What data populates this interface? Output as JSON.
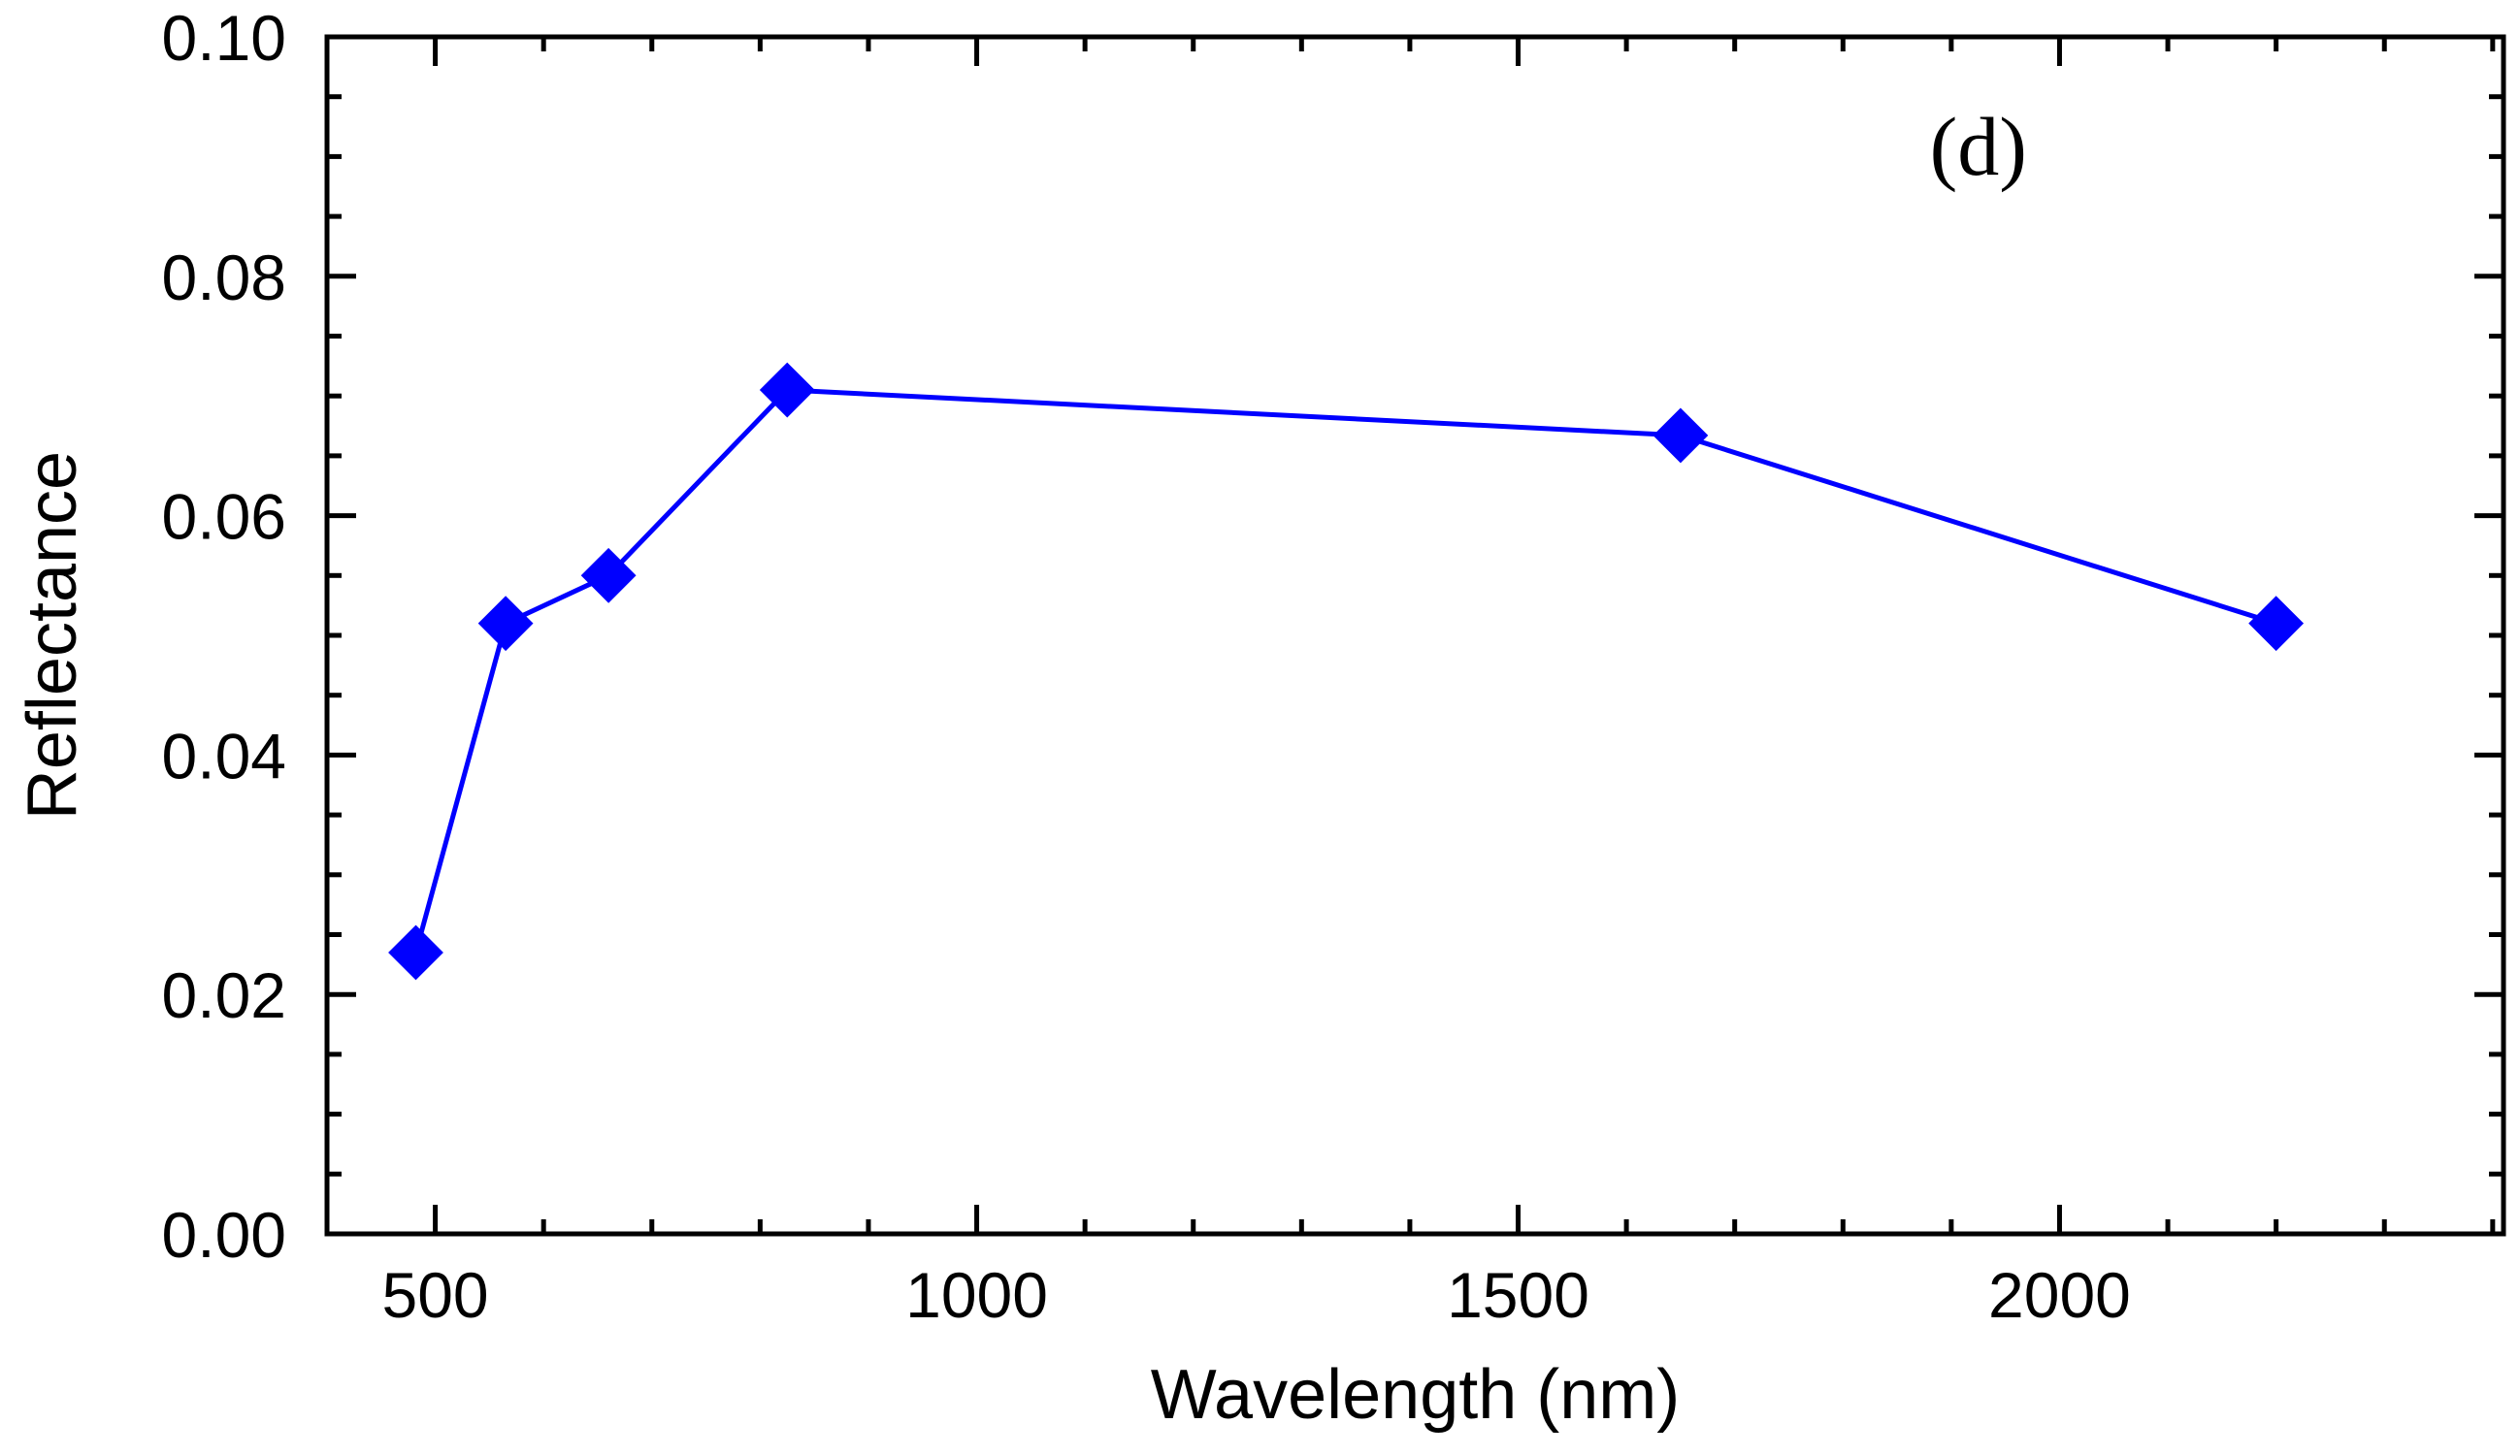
{
  "chart_data": {
    "type": "line",
    "title": "",
    "panel_label": "(d)",
    "xlabel": "Wavelength (nm)",
    "ylabel": "Reflectance",
    "xlim": [
      400,
      2410
    ],
    "ylim": [
      0.0,
      0.1
    ],
    "x_major_ticks": [
      500,
      1000,
      1500,
      2000
    ],
    "x_tick_labels": [
      "500",
      "1000",
      "1500",
      "2000"
    ],
    "x_minor_step": 100,
    "y_major_ticks": [
      0.0,
      0.02,
      0.04,
      0.06,
      0.08,
      0.1
    ],
    "y_tick_labels": [
      "0.00",
      "0.02",
      "0.04",
      "0.06",
      "0.08",
      "0.10"
    ],
    "y_minor_step": 0.005,
    "grid": false,
    "series": [
      {
        "name": "Reflectance",
        "color": "#0000ff",
        "marker": "diamond",
        "x": [
          482,
          565,
          660,
          825,
          1650,
          2200
        ],
        "y": [
          0.0235,
          0.051,
          0.055,
          0.0705,
          0.0667,
          0.051
        ]
      }
    ]
  }
}
